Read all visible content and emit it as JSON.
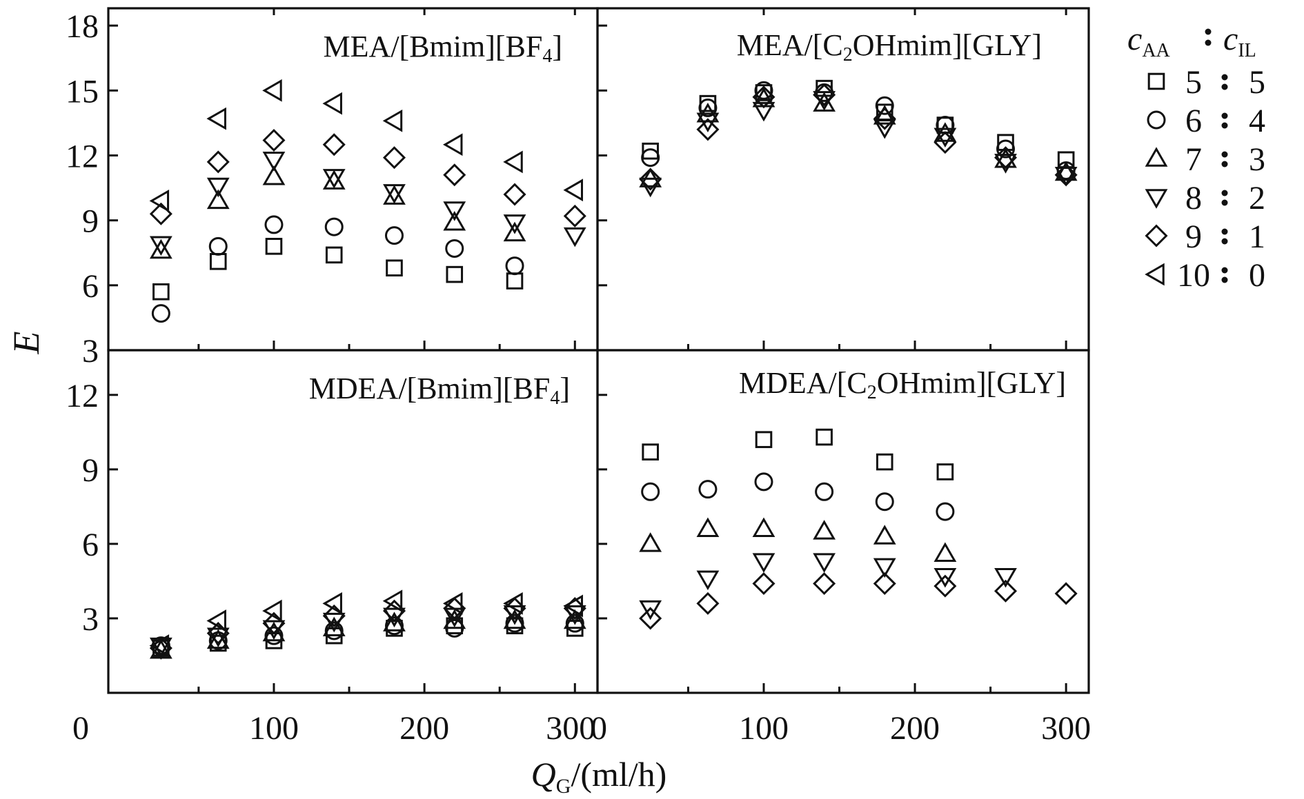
{
  "chart_data": [
    {
      "panel": "top-left",
      "type": "scatter",
      "title": "MEA/[Bmim][BF4]",
      "title_main": "MEA/[Bmim][BF",
      "title_sub": "4",
      "title_tail": "]",
      "xlim": [
        -10,
        315
      ],
      "ylim": [
        3,
        18.8
      ],
      "series": [
        {
          "marker": "square",
          "x": [
            25,
            63,
            100,
            140,
            180,
            220,
            260
          ],
          "y": [
            5.7,
            7.1,
            7.8,
            7.4,
            6.8,
            6.5,
            6.2
          ]
        },
        {
          "marker": "circle",
          "x": [
            25,
            63,
            100,
            140,
            180,
            220,
            260
          ],
          "y": [
            4.7,
            7.8,
            8.8,
            8.7,
            8.3,
            7.7,
            6.9
          ]
        },
        {
          "marker": "triangle-up",
          "x": [
            25,
            63,
            100,
            140,
            180,
            220,
            260
          ],
          "y": [
            7.6,
            9.9,
            11.0,
            10.8,
            10.1,
            8.9,
            8.4
          ]
        },
        {
          "marker": "triangle-down",
          "x": [
            25,
            63,
            100,
            140,
            180,
            220,
            260,
            300
          ],
          "y": [
            7.9,
            10.6,
            11.8,
            11.0,
            10.3,
            9.5,
            8.9,
            8.3
          ]
        },
        {
          "marker": "diamond",
          "x": [
            25,
            63,
            100,
            140,
            180,
            220,
            260,
            300
          ],
          "y": [
            9.3,
            11.7,
            12.7,
            12.5,
            11.9,
            11.1,
            10.2,
            9.2
          ]
        },
        {
          "marker": "triangle-left",
          "x": [
            25,
            63,
            100,
            140,
            180,
            220,
            260,
            300
          ],
          "y": [
            9.9,
            13.7,
            15.0,
            14.4,
            13.6,
            12.5,
            11.7,
            10.4
          ]
        }
      ]
    },
    {
      "panel": "top-right",
      "type": "scatter",
      "title": "MEA/[C2OHmim][GLY]",
      "title_main": "MEA/[C",
      "title_sub": "2",
      "title_tail": "OHmim][GLY]",
      "xlim": [
        -10,
        315
      ],
      "ylim": [
        3,
        18.8
      ],
      "series": [
        {
          "marker": "square",
          "x": [
            25,
            63,
            100,
            140,
            180,
            220,
            260,
            300
          ],
          "y": [
            12.2,
            14.4,
            14.9,
            15.1,
            14.0,
            13.4,
            12.6,
            11.8
          ]
        },
        {
          "marker": "circle",
          "x": [
            25,
            63,
            100,
            140,
            180,
            220,
            260,
            300
          ],
          "y": [
            11.9,
            14.2,
            15.0,
            14.9,
            14.3,
            13.4,
            12.3,
            11.3
          ]
        },
        {
          "marker": "triangle-up",
          "x": [
            25,
            63,
            100,
            140,
            180,
            220,
            260,
            300
          ],
          "y": [
            10.9,
            13.9,
            14.6,
            14.4,
            13.8,
            13.0,
            11.8,
            11.2
          ]
        },
        {
          "marker": "triangle-down",
          "x": [
            25,
            63,
            100,
            140,
            180,
            220,
            260,
            300
          ],
          "y": [
            10.6,
            13.6,
            14.1,
            14.6,
            13.3,
            12.9,
            11.7,
            11.1
          ]
        },
        {
          "marker": "diamond",
          "x": [
            25,
            63,
            100,
            140,
            180,
            220,
            260,
            300
          ],
          "y": [
            10.9,
            13.2,
            14.7,
            14.8,
            13.7,
            12.6,
            11.9,
            11.1
          ]
        }
      ]
    },
    {
      "panel": "bottom-left",
      "type": "scatter",
      "title": "MDEA/[Bmim][BF4]",
      "title_main": "MDEA/[Bmim][BF",
      "title_sub": "4",
      "title_tail": "]",
      "xlim": [
        -10,
        315
      ],
      "ylim": [
        0,
        13.8
      ],
      "series": [
        {
          "marker": "square",
          "x": [
            25,
            63,
            100,
            140,
            180,
            220,
            260,
            300
          ],
          "y": [
            1.8,
            2.0,
            2.1,
            2.3,
            2.6,
            2.7,
            2.7,
            2.6
          ]
        },
        {
          "marker": "circle",
          "x": [
            25,
            63,
            100,
            140,
            180,
            220,
            260,
            300
          ],
          "y": [
            1.9,
            2.1,
            2.3,
            2.5,
            2.7,
            2.6,
            2.8,
            2.8
          ]
        },
        {
          "marker": "triangle-up",
          "x": [
            25,
            63,
            100,
            140,
            180,
            220,
            260,
            300
          ],
          "y": [
            1.7,
            2.1,
            2.4,
            2.6,
            2.8,
            2.9,
            2.9,
            2.9
          ]
        },
        {
          "marker": "triangle-down",
          "x": [
            25,
            63,
            100,
            140,
            180,
            220,
            260,
            300
          ],
          "y": [
            1.9,
            2.3,
            2.6,
            2.9,
            3.1,
            3.1,
            3.2,
            3.2
          ]
        },
        {
          "marker": "diamond",
          "x": [
            25,
            63,
            100,
            140,
            180,
            220,
            260,
            300
          ],
          "y": [
            1.8,
            2.4,
            2.8,
            3.1,
            3.3,
            3.4,
            3.4,
            3.4
          ]
        },
        {
          "marker": "triangle-left",
          "x": [
            25,
            63,
            100,
            140,
            180,
            220,
            260,
            300
          ],
          "y": [
            1.9,
            2.9,
            3.3,
            3.6,
            3.7,
            3.6,
            3.6,
            3.5
          ]
        }
      ]
    },
    {
      "panel": "bottom-right",
      "type": "scatter",
      "title": "MDEA/[C2OHmim][GLY]",
      "title_main": "MDEA/[C",
      "title_sub": "2",
      "title_tail": "OHmim][GLY]",
      "xlim": [
        -10,
        315
      ],
      "ylim": [
        0,
        13.8
      ],
      "series": [
        {
          "marker": "square",
          "x": [
            25,
            100,
            140,
            180,
            220
          ],
          "y": [
            9.7,
            10.2,
            10.3,
            9.3,
            8.9
          ]
        },
        {
          "marker": "circle",
          "x": [
            25,
            63,
            100,
            140,
            180,
            220
          ],
          "y": [
            8.1,
            8.2,
            8.5,
            8.1,
            7.7,
            7.3
          ]
        },
        {
          "marker": "triangle-up",
          "x": [
            25,
            63,
            100,
            140,
            180,
            220
          ],
          "y": [
            6.0,
            6.6,
            6.6,
            6.5,
            6.3,
            5.6
          ]
        },
        {
          "marker": "triangle-down",
          "x": [
            25,
            63,
            100,
            140,
            180,
            220,
            260
          ],
          "y": [
            3.4,
            4.6,
            5.3,
            5.3,
            5.1,
            4.7,
            4.7
          ]
        },
        {
          "marker": "diamond",
          "x": [
            25,
            63,
            100,
            140,
            180,
            220,
            260,
            300
          ],
          "y": [
            3.0,
            3.6,
            4.4,
            4.4,
            4.4,
            4.3,
            4.1,
            4.0
          ]
        }
      ]
    }
  ],
  "axes": {
    "x_ticks": [
      100,
      200,
      300
    ],
    "x_ticks_with_zero": [
      0,
      100,
      200,
      300
    ],
    "x_minor_ticks": [
      50,
      150,
      250
    ],
    "top_y_ticks": [
      3,
      6,
      9,
      12,
      15,
      18
    ],
    "top_y_tick_labels": [
      "3",
      "6",
      "9",
      "12",
      "15",
      "18"
    ],
    "bottom_y_ticks": [
      3,
      6,
      9,
      12
    ],
    "bottom_y_tick_labels": [
      "3",
      "6",
      "9",
      "12"
    ],
    "x_tick_labels_left": [
      "0",
      "100",
      "200",
      "300"
    ],
    "x_tick_labels_right": [
      "0",
      "100",
      "200",
      "300"
    ],
    "ylabel": "E",
    "xlabel_main": "Q",
    "xlabel_sub": "G",
    "xlabel_tail": "/(ml/h)",
    "xlabel": "QG/(ml/h)"
  },
  "legend": {
    "placement": "right",
    "header_left": "c",
    "header_left_sub": "AA",
    "header_right": "c",
    "header_right_sub": "IL",
    "header": "cAA : cIL",
    "entries": [
      {
        "marker": "square",
        "a": "5",
        "b": "5"
      },
      {
        "marker": "circle",
        "a": "6",
        "b": "4"
      },
      {
        "marker": "triangle-up",
        "a": "7",
        "b": "3"
      },
      {
        "marker": "triangle-down",
        "a": "8",
        "b": "2"
      },
      {
        "marker": "diamond",
        "a": "9",
        "b": "1"
      },
      {
        "marker": "triangle-left",
        "a": "10",
        "b": "0"
      }
    ]
  }
}
